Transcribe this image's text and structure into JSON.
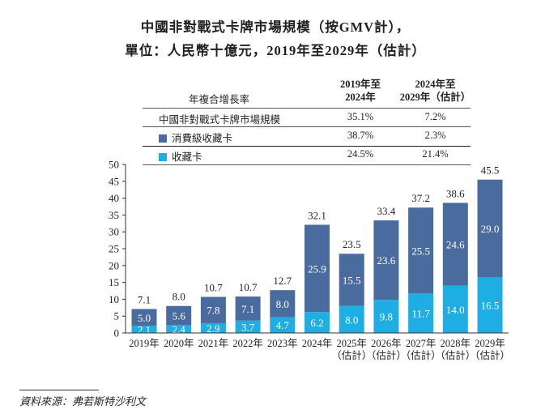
{
  "title_line1": "中國非對戰式卡牌市場規模（按GMV計），",
  "title_line2": "單位：人民幣十億元，2019年至2029年（估計）",
  "cagr_table": {
    "row_header": "年複合增長率",
    "col1_header": [
      "2019年至",
      "2024年"
    ],
    "col2_header": [
      "2024年至",
      "2029年（估計）"
    ],
    "rows": [
      {
        "label": "中國非對戰式卡牌市場規模",
        "col1": "35.1%",
        "col2": "7.2%"
      },
      {
        "label": "消費級收藏卡",
        "col1": "38.7%",
        "col2": "2.3%",
        "swatch": "#4a6b9e"
      },
      {
        "label": "收藏卡",
        "col1": "24.5%",
        "col2": "21.4%",
        "swatch": "#1eaee3"
      }
    ]
  },
  "chart_data": {
    "type": "bar",
    "stacked": true,
    "categories": [
      "2019年",
      "2020年",
      "2021年",
      "2022年",
      "2023年",
      "2024年",
      "2025年\n（估計）",
      "2026年\n（估計）",
      "2027年\n（估計）",
      "2028年\n（估計）",
      "2029年\n（估計）"
    ],
    "series": [
      {
        "name": "收藏卡",
        "color": "#1eaee3",
        "values": [
          2.1,
          2.4,
          2.9,
          3.7,
          4.7,
          6.2,
          8.0,
          9.8,
          11.7,
          14.0,
          16.5
        ]
      },
      {
        "name": "消費級收藏卡",
        "color": "#4a6b9e",
        "values": [
          5.0,
          5.6,
          7.8,
          7.1,
          8.0,
          25.9,
          15.5,
          23.6,
          25.5,
          24.6,
          29.0
        ]
      }
    ],
    "totals": [
      "7.1",
      "8.0",
      "10.7",
      "10.7",
      "12.7",
      "32.1",
      "23.5",
      "33.4",
      "37.2",
      "38.6",
      "45.5"
    ],
    "ylim": [
      0,
      50
    ],
    "yticks": [
      0,
      5,
      10,
      15,
      20,
      25,
      30,
      35,
      40,
      45,
      50
    ],
    "grid": false
  },
  "source": "資料來源：弗若斯特沙利文"
}
